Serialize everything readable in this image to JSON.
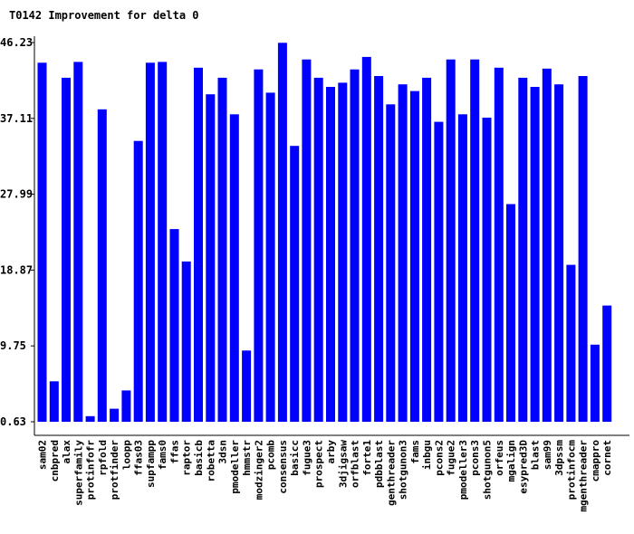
{
  "chart_data": {
    "type": "bar",
    "title": "T0142 Improvement for delta 0",
    "xlabel": "",
    "ylabel": "",
    "ylim": [
      0.63,
      46.23
    ],
    "yticks": [
      "0.63",
      "9.75",
      "18.87",
      "27.99",
      "37.11",
      "46.23"
    ],
    "grid": false,
    "bar_color": "#0000ff",
    "categories": [
      "sam02",
      "cnbpred",
      "alax",
      "superfamily",
      "protinfofr",
      "rpfold",
      "protfinder",
      "loopp",
      "ffas03",
      "supfampp",
      "fams0",
      "ffas",
      "raptor",
      "basicb",
      "robetta",
      "3dsn",
      "pmodeller",
      "hmmstr",
      "modzinger2",
      "pcomb",
      "consensus",
      "basicc",
      "fugue3",
      "prospect",
      "arby",
      "3djigsaw",
      "orfblast",
      "forte1",
      "pdbblast",
      "genthreader",
      "shotgunon3",
      "fams",
      "inbgu",
      "pcons2",
      "fugue2",
      "pmodeller3",
      "pcons3",
      "shotgunon5",
      "orfeus",
      "mgalign",
      "esypred3D",
      "blast",
      "sam99",
      "3dpssm",
      "protinfocm",
      "mgenthreader",
      "cmappro",
      "cornet"
    ],
    "values": [
      43.8,
      5.5,
      42.0,
      43.9,
      1.3,
      38.2,
      2.2,
      4.4,
      34.4,
      43.8,
      43.9,
      23.8,
      19.9,
      43.2,
      40.0,
      42.0,
      37.6,
      9.2,
      43.0,
      40.2,
      46.2,
      33.8,
      44.2,
      42.0,
      40.9,
      41.4,
      43.0,
      44.5,
      42.2,
      38.8,
      41.2,
      40.4,
      42.0,
      36.7,
      44.2,
      37.6,
      44.2,
      37.2,
      43.2,
      26.8,
      42.0,
      40.9,
      43.1,
      41.2,
      19.5,
      42.2,
      9.9,
      14.6
    ]
  }
}
